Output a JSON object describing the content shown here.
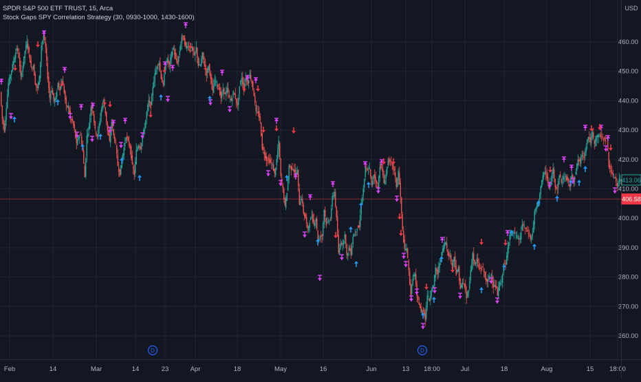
{
  "legend": {
    "symbol_line": "SPDR S&P 500 ETF TRUST, 15, Arca",
    "strategy_line": "Stock Gaps SPY Correlation Strategy (30, 0930-1000, 1430-1600)"
  },
  "price_axis": {
    "currency": "USD",
    "ticks": [
      "460.00",
      "450.00",
      "440.00",
      "430.00",
      "420.00",
      "410.00",
      "400.00",
      "390.00",
      "380.00",
      "370.00",
      "360.00"
    ],
    "tick_values": [
      460,
      450,
      440,
      430,
      420,
      410,
      400,
      390,
      380,
      370,
      360
    ],
    "range": [
      355,
      478
    ],
    "last_price": {
      "label": "413.06",
      "value": 413.06,
      "color": "#26a69a"
    },
    "marker_price": {
      "label": "406.58",
      "value": 406.58,
      "color": "#f23645"
    }
  },
  "time_axis": {
    "labels": [
      "Feb",
      "14",
      "Mar",
      "14",
      "23",
      "Apr",
      "18",
      "May",
      "16",
      "Jun",
      "13",
      "18:00",
      "Jul",
      "18",
      "Aug",
      "15",
      "18:00"
    ]
  },
  "event_markers": [
    {
      "label": "D",
      "color": "#2962ff"
    },
    {
      "label": "D",
      "color": "#2962ff"
    }
  ],
  "colors": {
    "background": "#131722",
    "grid": "#1f2433",
    "axis_text": "#b2b5be",
    "up_candle": "#26a69a",
    "down_candle": "#ef5350",
    "long_arrow": "#2196f3",
    "short_arrow": "#f23645",
    "exit_marker": "#e040fb"
  },
  "chart_data": {
    "type": "candlestick",
    "title": "SPDR S&P 500 ETF TRUST, 15, Arca",
    "ylabel": "USD",
    "ylim": [
      355,
      478
    ],
    "price_path": [
      [
        0,
        443
      ],
      [
        3,
        434
      ],
      [
        6,
        430
      ],
      [
        9,
        438
      ],
      [
        12,
        446
      ],
      [
        15,
        449
      ],
      [
        18,
        452
      ],
      [
        21,
        455
      ],
      [
        24,
        458
      ],
      [
        27,
        455
      ],
      [
        30,
        448
      ],
      [
        33,
        452
      ],
      [
        36,
        457
      ],
      [
        39,
        460
      ],
      [
        42,
        456
      ],
      [
        45,
        451
      ],
      [
        48,
        452
      ],
      [
        51,
        446
      ],
      [
        54,
        444
      ],
      [
        57,
        448
      ],
      [
        60,
        459
      ],
      [
        63,
        462
      ],
      [
        66,
        458
      ],
      [
        69,
        448
      ],
      [
        72,
        441
      ],
      [
        75,
        444
      ],
      [
        78,
        440
      ],
      [
        81,
        441
      ],
      [
        84,
        446
      ],
      [
        87,
        444
      ],
      [
        90,
        447
      ],
      [
        93,
        443
      ],
      [
        96,
        438
      ],
      [
        99,
        438
      ],
      [
        102,
        434
      ],
      [
        105,
        433
      ],
      [
        108,
        430
      ],
      [
        111,
        425
      ],
      [
        114,
        428
      ],
      [
        117,
        428
      ],
      [
        120,
        423
      ],
      [
        123,
        414
      ],
      [
        126,
        428
      ],
      [
        129,
        431
      ],
      [
        132,
        438
      ],
      [
        135,
        436
      ],
      [
        138,
        430
      ],
      [
        141,
        428
      ],
      [
        144,
        432
      ],
      [
        147,
        437
      ],
      [
        150,
        440
      ],
      [
        153,
        436
      ],
      [
        156,
        430
      ],
      [
        159,
        426
      ],
      [
        162,
        433
      ],
      [
        165,
        428
      ],
      [
        168,
        425
      ],
      [
        171,
        418
      ],
      [
        174,
        415
      ],
      [
        177,
        420
      ],
      [
        180,
        424
      ],
      [
        183,
        428
      ],
      [
        186,
        426
      ],
      [
        189,
        424
      ],
      [
        192,
        418
      ],
      [
        195,
        415
      ],
      [
        198,
        423
      ],
      [
        201,
        425
      ],
      [
        204,
        424
      ],
      [
        207,
        428
      ],
      [
        210,
        431
      ],
      [
        213,
        436
      ],
      [
        216,
        440
      ],
      [
        219,
        438
      ],
      [
        222,
        445
      ],
      [
        225,
        449
      ],
      [
        228,
        452
      ],
      [
        231,
        453
      ],
      [
        234,
        448
      ],
      [
        237,
        445
      ],
      [
        240,
        452
      ],
      [
        243,
        454
      ],
      [
        246,
        452
      ],
      [
        249,
        456
      ],
      [
        252,
        458
      ],
      [
        255,
        454
      ],
      [
        258,
        453
      ],
      [
        261,
        457
      ],
      [
        264,
        462
      ],
      [
        267,
        461
      ],
      [
        270,
        458
      ],
      [
        273,
        459
      ],
      [
        276,
        457
      ],
      [
        279,
        458
      ],
      [
        282,
        455
      ],
      [
        285,
        458
      ],
      [
        288,
        452
      ],
      [
        291,
        452
      ],
      [
        294,
        456
      ],
      [
        297,
        452
      ],
      [
        300,
        449
      ],
      [
        303,
        452
      ],
      [
        306,
        448
      ],
      [
        309,
        443
      ],
      [
        312,
        447
      ],
      [
        315,
        446
      ],
      [
        318,
        444
      ],
      [
        321,
        441
      ],
      [
        324,
        444
      ],
      [
        327,
        442
      ],
      [
        330,
        444
      ],
      [
        333,
        441
      ],
      [
        336,
        440
      ],
      [
        339,
        443
      ],
      [
        342,
        441
      ],
      [
        345,
        438
      ],
      [
        348,
        445
      ],
      [
        351,
        448
      ],
      [
        354,
        444
      ],
      [
        357,
        448
      ],
      [
        360,
        446
      ],
      [
        363,
        449
      ],
      [
        366,
        446
      ],
      [
        369,
        442
      ],
      [
        372,
        436
      ],
      [
        375,
        436
      ],
      [
        378,
        433
      ],
      [
        381,
        424
      ],
      [
        384,
        422
      ],
      [
        387,
        420
      ],
      [
        390,
        420
      ],
      [
        393,
        419
      ],
      [
        396,
        418
      ],
      [
        399,
        415
      ],
      [
        402,
        420
      ],
      [
        405,
        426
      ],
      [
        408,
        414
      ],
      [
        411,
        410
      ],
      [
        414,
        404
      ],
      [
        417,
        409
      ],
      [
        420,
        418
      ],
      [
        423,
        417
      ],
      [
        426,
        417
      ],
      [
        429,
        415
      ],
      [
        432,
        416
      ],
      [
        435,
        405
      ],
      [
        438,
        407
      ],
      [
        441,
        402
      ],
      [
        444,
        400
      ],
      [
        447,
        396
      ],
      [
        450,
        399
      ],
      [
        453,
        401
      ],
      [
        456,
        398
      ],
      [
        459,
        400
      ],
      [
        462,
        392
      ],
      [
        465,
        394
      ],
      [
        468,
        394
      ],
      [
        471,
        403
      ],
      [
        474,
        398
      ],
      [
        477,
        399
      ],
      [
        480,
        400
      ],
      [
        483,
        407
      ],
      [
        486,
        409
      ],
      [
        489,
        400
      ],
      [
        492,
        388
      ],
      [
        495,
        392
      ],
      [
        498,
        391
      ],
      [
        501,
        395
      ],
      [
        504,
        387
      ],
      [
        507,
        390
      ],
      [
        510,
        388
      ],
      [
        513,
        394
      ],
      [
        516,
        395
      ],
      [
        519,
        397
      ],
      [
        522,
        397
      ],
      [
        525,
        405
      ],
      [
        528,
        410
      ],
      [
        531,
        417
      ],
      [
        534,
        416
      ],
      [
        537,
        417
      ],
      [
        540,
        411
      ],
      [
        543,
        415
      ],
      [
        546,
        413
      ],
      [
        549,
        410
      ],
      [
        552,
        418
      ],
      [
        555,
        417
      ],
      [
        558,
        412
      ],
      [
        561,
        415
      ],
      [
        564,
        420
      ],
      [
        567,
        419
      ],
      [
        570,
        418
      ],
      [
        573,
        416
      ],
      [
        576,
        411
      ],
      [
        579,
        416
      ],
      [
        582,
        407
      ],
      [
        585,
        396
      ],
      [
        588,
        389
      ],
      [
        591,
        390
      ],
      [
        594,
        382
      ],
      [
        597,
        374
      ],
      [
        600,
        380
      ],
      [
        603,
        381
      ],
      [
        606,
        373
      ],
      [
        609,
        371
      ],
      [
        612,
        368
      ],
      [
        615,
        369
      ],
      [
        618,
        366
      ],
      [
        621,
        374
      ],
      [
        624,
        372
      ],
      [
        627,
        376
      ],
      [
        630,
        377
      ],
      [
        633,
        383
      ],
      [
        636,
        381
      ],
      [
        639,
        385
      ],
      [
        642,
        388
      ],
      [
        645,
        391
      ],
      [
        648,
        392
      ],
      [
        651,
        388
      ],
      [
        654,
        387
      ],
      [
        657,
        384
      ],
      [
        660,
        387
      ],
      [
        663,
        381
      ],
      [
        666,
        383
      ],
      [
        669,
        376
      ],
      [
        672,
        378
      ],
      [
        675,
        377
      ],
      [
        678,
        373
      ],
      [
        681,
        376
      ],
      [
        684,
        382
      ],
      [
        687,
        388
      ],
      [
        690,
        384
      ],
      [
        693,
        386
      ],
      [
        696,
        383
      ],
      [
        699,
        383
      ],
      [
        702,
        383
      ],
      [
        705,
        380
      ],
      [
        708,
        378
      ],
      [
        711,
        380
      ],
      [
        714,
        381
      ],
      [
        717,
        377
      ],
      [
        720,
        377
      ],
      [
        723,
        374
      ],
      [
        726,
        378
      ],
      [
        729,
        378
      ],
      [
        732,
        385
      ],
      [
        735,
        384
      ],
      [
        738,
        390
      ],
      [
        741,
        395
      ],
      [
        744,
        395
      ],
      [
        747,
        395
      ],
      [
        750,
        394
      ],
      [
        753,
        393
      ],
      [
        756,
        393
      ],
      [
        759,
        398
      ],
      [
        762,
        397
      ],
      [
        765,
        396
      ],
      [
        768,
        395
      ],
      [
        771,
        393
      ],
      [
        774,
        395
      ],
      [
        777,
        402
      ],
      [
        780,
        404
      ],
      [
        783,
        406
      ],
      [
        786,
        411
      ],
      [
        789,
        414
      ],
      [
        792,
        416
      ],
      [
        795,
        414
      ],
      [
        798,
        410
      ],
      [
        801,
        413
      ],
      [
        804,
        417
      ],
      [
        807,
        411
      ],
      [
        810,
        410
      ],
      [
        813,
        415
      ],
      [
        816,
        412
      ],
      [
        819,
        414
      ],
      [
        822,
        414
      ],
      [
        825,
        413
      ],
      [
        828,
        411
      ],
      [
        831,
        415
      ],
      [
        834,
        413
      ],
      [
        837,
        416
      ],
      [
        840,
        420
      ],
      [
        843,
        419
      ],
      [
        846,
        422
      ],
      [
        849,
        421
      ],
      [
        852,
        425
      ],
      [
        855,
        428
      ],
      [
        858,
        426
      ],
      [
        861,
        429
      ],
      [
        864,
        425
      ],
      [
        867,
        428
      ],
      [
        870,
        428
      ],
      [
        873,
        428
      ],
      [
        876,
        427
      ],
      [
        879,
        427
      ],
      [
        882,
        427
      ],
      [
        885,
        418
      ],
      [
        888,
        416
      ],
      [
        891,
        414
      ],
      [
        894,
        414
      ],
      [
        897,
        411
      ],
      [
        900,
        413
      ],
      [
        903,
        413
      ]
    ],
    "ylim_note_unit": "USD"
  }
}
